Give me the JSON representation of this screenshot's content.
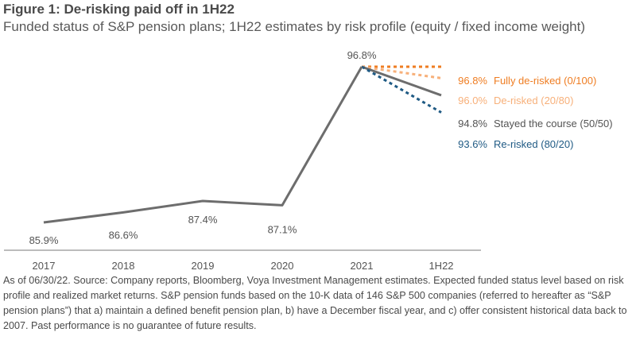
{
  "chart_data": {
    "type": "line",
    "title": "Figure 1: De-risking paid off in 1H22",
    "subtitle": "Funded status of S&P pension plans; 1H22 estimates by risk profile (equity / fixed income weight)",
    "xlabel": "",
    "ylabel": "",
    "categories": [
      "2017",
      "2018",
      "2019",
      "2020",
      "2021",
      "1H22"
    ],
    "ylim": [
      84,
      98
    ],
    "grid": false,
    "historical": {
      "name": "Funded status",
      "values": [
        85.9,
        86.6,
        87.4,
        87.1,
        96.8
      ],
      "labels": [
        "85.9%",
        "86.6%",
        "87.4%",
        "87.1%",
        "96.8%"
      ],
      "color": "#6d6d6d"
    },
    "series": [
      {
        "name": "Fully de-risked (0/100)",
        "value_label": "96.8%",
        "from": 96.8,
        "value": 96.8,
        "color": "#ef7d22",
        "dash": "dotted"
      },
      {
        "name": "De-risked (20/80)",
        "value_label": "96.0%",
        "from": 96.8,
        "value": 96.0,
        "color": "#f7b07a",
        "dash": "dotted"
      },
      {
        "name": "Stayed the course (50/50)",
        "value_label": "94.8%",
        "from": 96.8,
        "value": 94.8,
        "color": "#6d6d6d",
        "dash": "solid"
      },
      {
        "name": "Re-risked (80/20)",
        "value_label": "93.6%",
        "from": 96.8,
        "value": 93.6,
        "color": "#1f5a84",
        "dash": "dotted"
      }
    ],
    "legend": "right"
  },
  "footnote": "As of 06/30/22. Source: Company reports, Bloomberg, Voya Investment Management estimates. Expected funded status level based on risk profile and realized market returns. S&P pension funds based on the 10-K data of 146 S&P 500 companies (referred to hereafter as “S&P pension plans”) that a) maintain a defined benefit pension plan, b) have a December fiscal year, and c) offer consistent historical data back to 2007. Past performance is no guarantee of future results."
}
